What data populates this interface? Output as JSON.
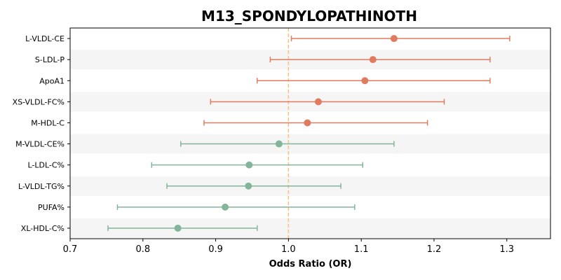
{
  "chart_data": {
    "type": "forest",
    "title": "M13_SPONDYLOPATHINOTH",
    "xlabel": "Odds Ratio (OR)",
    "ylabel": "",
    "xlim": [
      0.7,
      1.36
    ],
    "xticks": [
      "0.7",
      "0.8",
      "0.9",
      "1.0",
      "1.1",
      "1.2",
      "1.3"
    ],
    "reference_line": 1.0,
    "grid": false,
    "colors": {
      "positive": "#E07B5F",
      "negative": "#82B59A",
      "reference": "#F5C27A",
      "band": "#F5F5F5"
    },
    "rows": [
      {
        "label": "L-VLDL-CE",
        "or": 1.145,
        "lower": 1.004,
        "upper": 1.304
      },
      {
        "label": "S-LDL-P",
        "or": 1.116,
        "lower": 0.975,
        "upper": 1.277
      },
      {
        "label": "ApoA1",
        "or": 1.105,
        "lower": 0.957,
        "upper": 1.277
      },
      {
        "label": "XS-VLDL-FC%",
        "or": 1.041,
        "lower": 0.893,
        "upper": 1.214
      },
      {
        "label": "M-HDL-C",
        "or": 1.026,
        "lower": 0.884,
        "upper": 1.191
      },
      {
        "label": "M-VLDL-CE%",
        "or": 0.987,
        "lower": 0.852,
        "upper": 1.145
      },
      {
        "label": "L-LDL-C%",
        "or": 0.946,
        "lower": 0.812,
        "upper": 1.102
      },
      {
        "label": "L-VLDL-TG%",
        "or": 0.945,
        "lower": 0.833,
        "upper": 1.072
      },
      {
        "label": "PUFA%",
        "or": 0.913,
        "lower": 0.765,
        "upper": 1.091
      },
      {
        "label": "XL-HDL-C%",
        "or": 0.848,
        "lower": 0.752,
        "upper": 0.957
      }
    ]
  }
}
